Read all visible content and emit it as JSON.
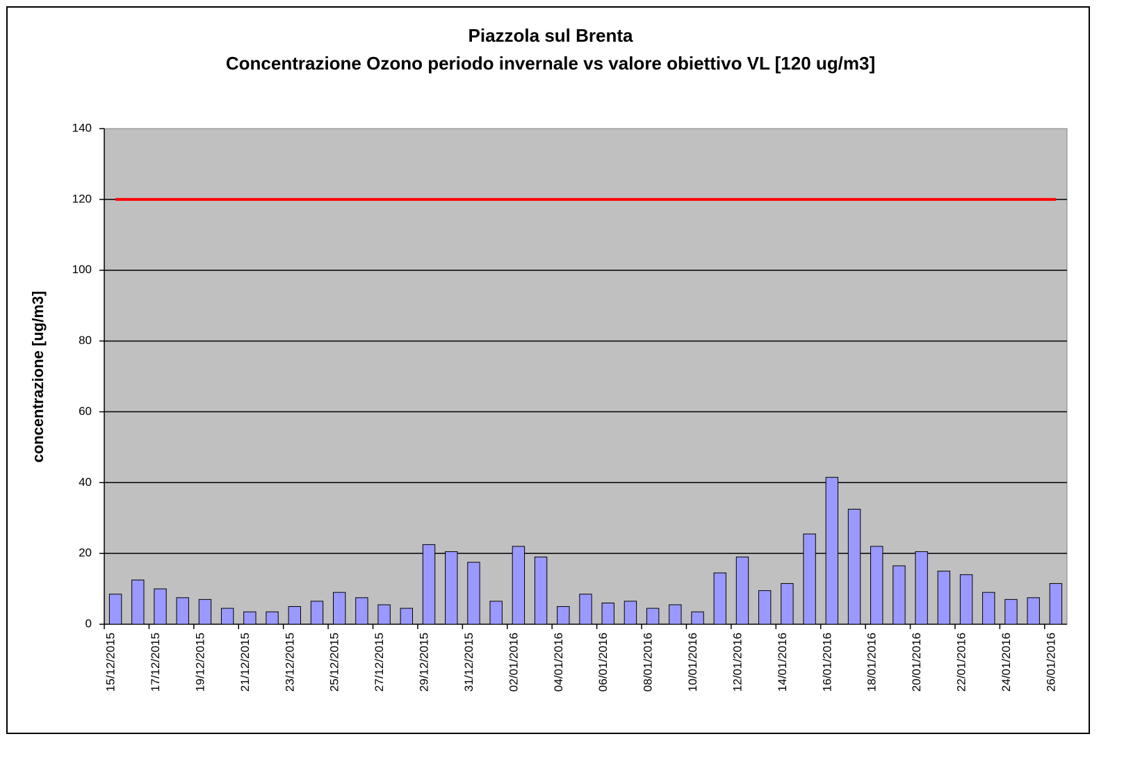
{
  "chart_data": {
    "type": "bar",
    "title": "Piazzola sul Brenta",
    "subtitle": "Concentrazione Ozono periodo invernale vs valore obiettivo VL [120 ug/m3]",
    "y_label": "concentrazione [ug/m3]",
    "categories": [
      "15/12/2015",
      null,
      "17/12/2015",
      null,
      "19/12/2015",
      null,
      "21/12/2015",
      null,
      "23/12/2015",
      null,
      "25/12/2015",
      null,
      "27/12/2015",
      null,
      "29/12/2015",
      null,
      "31/12/2015",
      null,
      "02/01/2016",
      null,
      "04/01/2016",
      null,
      "06/01/2016",
      null,
      "08/01/2016",
      null,
      "10/01/2016",
      null,
      "12/01/2016",
      null,
      "14/01/2016",
      null,
      "16/01/2016",
      null,
      "18/01/2016",
      null,
      "20/01/2016",
      null,
      "22/01/2016",
      null,
      "24/01/2016",
      null,
      "26/01/2016"
    ],
    "values": [
      8.5,
      12.5,
      10,
      7.5,
      7,
      4.5,
      3.5,
      3.5,
      5,
      6.5,
      9,
      7.5,
      5.5,
      4.5,
      22.5,
      20.5,
      17.5,
      6.5,
      22,
      19,
      5,
      8.5,
      6,
      6.5,
      4.5,
      5.5,
      3.5,
      14.5,
      19,
      9.5,
      11.5,
      25.5,
      41.5,
      32.5,
      22,
      16.5,
      20.5,
      15,
      14,
      9,
      7,
      7.5,
      11.5
    ],
    "color": "#9999ff",
    "target_line": {
      "value": 120,
      "color": "#ff0000"
    },
    "ylim": [
      0,
      140
    ],
    "yticks": [
      0,
      20,
      40,
      60,
      80,
      100,
      120,
      140
    ],
    "grid": true,
    "plot_background": "#c0c0c0"
  }
}
